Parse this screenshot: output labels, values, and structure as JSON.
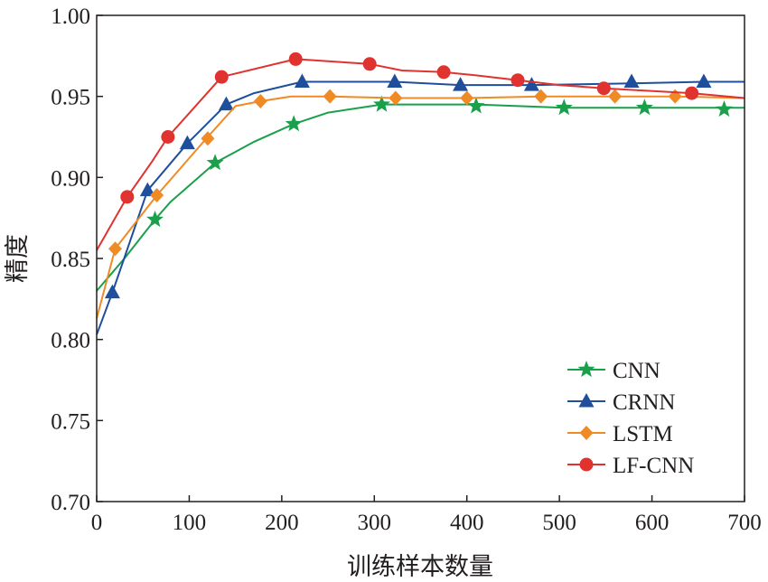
{
  "chart_data": {
    "type": "line",
    "title": "",
    "xlabel": "训练样本数量",
    "ylabel": "精度",
    "xlim": [
      0,
      700
    ],
    "ylim": [
      0.7,
      1.0
    ],
    "x_ticks": [
      "0",
      "100",
      "200",
      "300",
      "400",
      "500",
      "600",
      "700"
    ],
    "y_ticks": [
      "0.70",
      "0.75",
      "0.80",
      "0.85",
      "0.90",
      "0.95",
      "1.00"
    ],
    "grid": false,
    "legend_position": "bottom-right",
    "series": [
      {
        "name": "CNN",
        "color": "#1aa04a",
        "marker": "star",
        "line": [
          [
            0,
            0.83
          ],
          [
            30,
            0.85
          ],
          [
            63,
            0.874
          ],
          [
            80,
            0.885
          ],
          [
            128,
            0.909
          ],
          [
            170,
            0.922
          ],
          [
            213,
            0.933
          ],
          [
            250,
            0.94
          ],
          [
            308,
            0.945
          ],
          [
            410,
            0.945
          ],
          [
            505,
            0.943
          ],
          [
            592,
            0.943
          ],
          [
            678,
            0.943
          ],
          [
            700,
            0.943
          ]
        ],
        "points": [
          [
            63,
            0.874
          ],
          [
            128,
            0.909
          ],
          [
            213,
            0.933
          ],
          [
            308,
            0.945
          ],
          [
            410,
            0.944
          ],
          [
            505,
            0.943
          ],
          [
            592,
            0.943
          ],
          [
            678,
            0.942
          ]
        ]
      },
      {
        "name": "CRNN",
        "color": "#1f4e9c",
        "marker": "triangle",
        "line": [
          [
            0,
            0.803
          ],
          [
            17,
            0.829
          ],
          [
            55,
            0.892
          ],
          [
            98,
            0.921
          ],
          [
            140,
            0.945
          ],
          [
            170,
            0.952
          ],
          [
            222,
            0.959
          ],
          [
            322,
            0.959
          ],
          [
            393,
            0.957
          ],
          [
            470,
            0.957
          ],
          [
            578,
            0.958
          ],
          [
            656,
            0.959
          ],
          [
            700,
            0.959
          ]
        ],
        "points": [
          [
            17,
            0.829
          ],
          [
            55,
            0.892
          ],
          [
            98,
            0.921
          ],
          [
            140,
            0.945
          ],
          [
            222,
            0.959
          ],
          [
            322,
            0.959
          ],
          [
            393,
            0.957
          ],
          [
            470,
            0.957
          ],
          [
            578,
            0.959
          ],
          [
            656,
            0.959
          ]
        ]
      },
      {
        "name": "LSTM",
        "color": "#f08a24",
        "marker": "diamond",
        "line": [
          [
            0,
            0.813
          ],
          [
            20,
            0.856
          ],
          [
            65,
            0.889
          ],
          [
            120,
            0.925
          ],
          [
            150,
            0.944
          ],
          [
            177,
            0.947
          ],
          [
            210,
            0.95
          ],
          [
            252,
            0.95
          ],
          [
            323,
            0.949
          ],
          [
            400,
            0.949
          ],
          [
            480,
            0.95
          ],
          [
            560,
            0.95
          ],
          [
            625,
            0.95
          ],
          [
            700,
            0.949
          ]
        ],
        "points": [
          [
            20,
            0.856
          ],
          [
            65,
            0.889
          ],
          [
            120,
            0.924
          ],
          [
            177,
            0.947
          ],
          [
            252,
            0.95
          ],
          [
            323,
            0.949
          ],
          [
            400,
            0.949
          ],
          [
            480,
            0.95
          ],
          [
            560,
            0.95
          ],
          [
            625,
            0.95
          ]
        ]
      },
      {
        "name": "LF-CNN",
        "color": "#e0322e",
        "marker": "circle",
        "line": [
          [
            0,
            0.855
          ],
          [
            33,
            0.888
          ],
          [
            60,
            0.91
          ],
          [
            77,
            0.925
          ],
          [
            135,
            0.962
          ],
          [
            215,
            0.973
          ],
          [
            295,
            0.97
          ],
          [
            330,
            0.966
          ],
          [
            375,
            0.965
          ],
          [
            410,
            0.963
          ],
          [
            455,
            0.96
          ],
          [
            500,
            0.957
          ],
          [
            548,
            0.955
          ],
          [
            643,
            0.952
          ],
          [
            700,
            0.949
          ]
        ],
        "points": [
          [
            33,
            0.888
          ],
          [
            77,
            0.925
          ],
          [
            135,
            0.962
          ],
          [
            215,
            0.973
          ],
          [
            295,
            0.97
          ],
          [
            375,
            0.965
          ],
          [
            455,
            0.96
          ],
          [
            548,
            0.955
          ],
          [
            643,
            0.952
          ]
        ]
      }
    ]
  }
}
